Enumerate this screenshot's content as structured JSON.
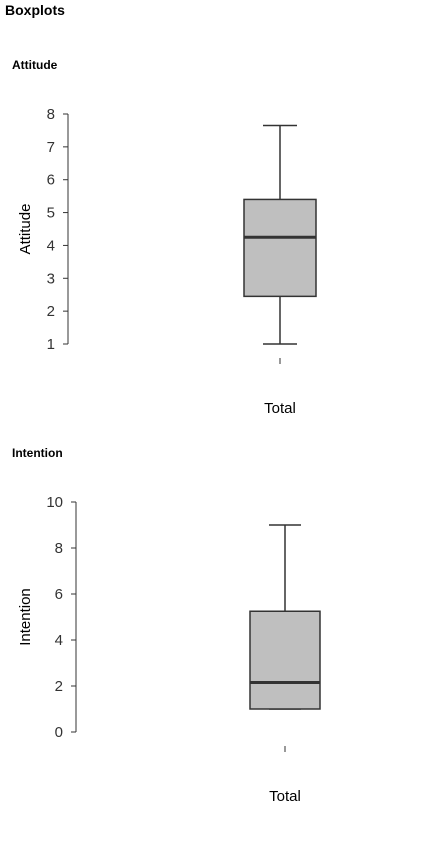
{
  "page_title": "Boxplots",
  "colors": {
    "box_fill": "#bfbfbf",
    "stroke": "#333333",
    "median": "#333333"
  },
  "chart_data": [
    {
      "type": "boxplot",
      "title": "Attitude",
      "ylabel": "Attitude",
      "xlabel": "",
      "ylim": [
        1,
        8
      ],
      "yticks": [
        "1",
        "2",
        "3",
        "4",
        "5",
        "6",
        "7",
        "8"
      ],
      "categories": [
        "Total"
      ],
      "boxes": [
        {
          "category": "Total",
          "whisker_low": 1.0,
          "q1": 2.45,
          "median": 4.25,
          "q3": 5.4,
          "whisker_high": 7.65
        }
      ]
    },
    {
      "type": "boxplot",
      "title": "Intention",
      "ylabel": "Intention",
      "xlabel": "",
      "ylim": [
        0,
        10
      ],
      "yticks": [
        "0",
        "2",
        "4",
        "6",
        "8",
        "10"
      ],
      "categories": [
        "Total"
      ],
      "boxes": [
        {
          "category": "Total",
          "whisker_low": 1.0,
          "q1": 1.0,
          "median": 2.15,
          "q3": 5.25,
          "whisker_high": 9.0
        }
      ]
    }
  ]
}
